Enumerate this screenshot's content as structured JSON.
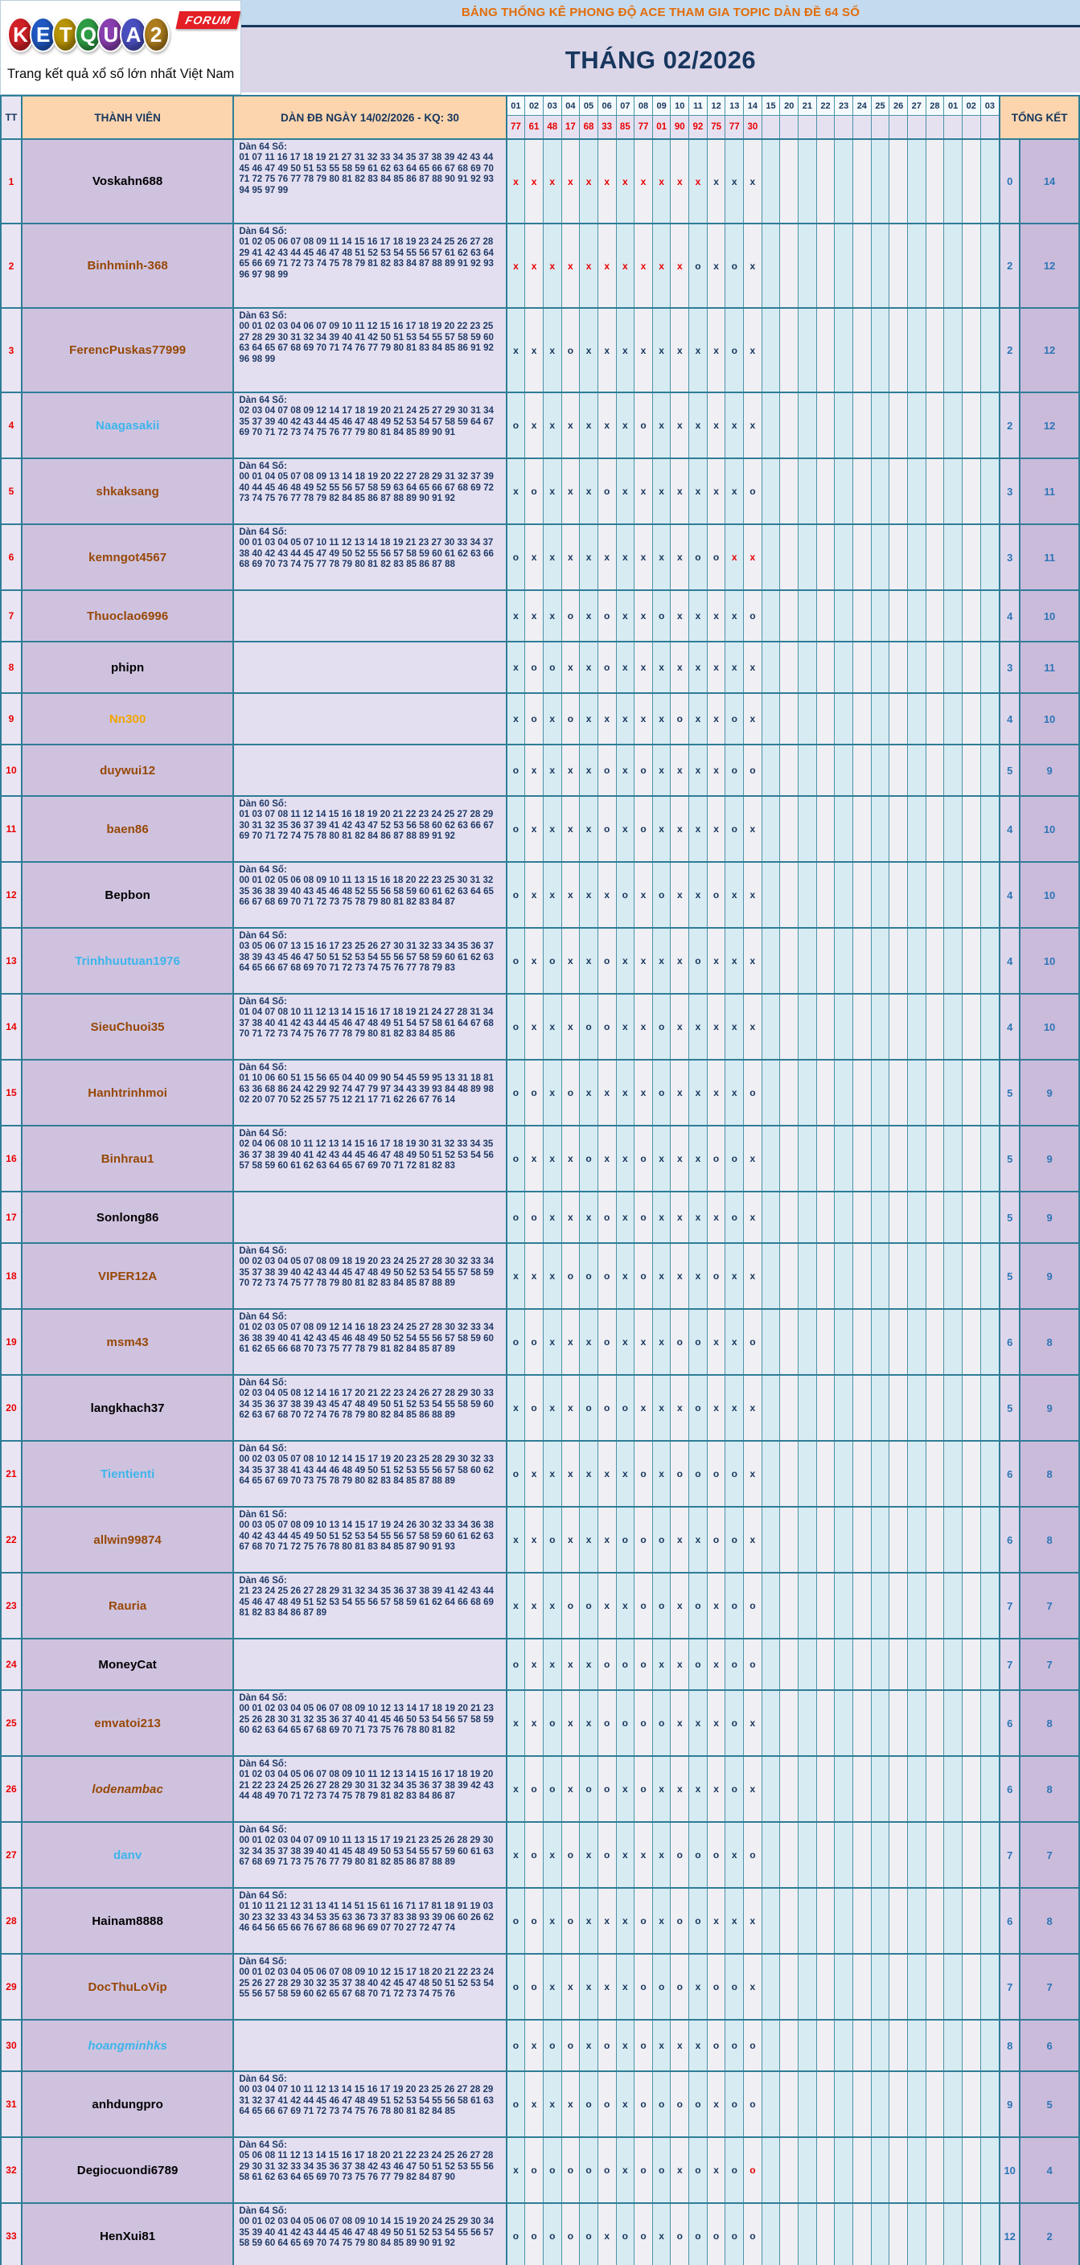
{
  "logo": {
    "letters": [
      {
        "ch": "K",
        "bg": "#d22027"
      },
      {
        "ch": "E",
        "bg": "#2059c2"
      },
      {
        "ch": "T",
        "bg": "#b99405"
      },
      {
        "ch": "Q",
        "bg": "#2e9c44"
      },
      {
        "ch": "U",
        "bg": "#8a3fb0"
      },
      {
        "ch": "A",
        "bg": "#4a4fc0"
      },
      {
        "ch": "2",
        "bg": "#ad7d1e"
      }
    ],
    "forum_label": "FORUM",
    "tagline": "Trang kết quả xổ số lớn nhất Việt Nam"
  },
  "header": {
    "title": "BẢNG THỐNG KÊ PHONG ĐỘ ACE THAM GIA TOPIC DÀN ĐỀ 64 SỐ",
    "month": "THÁNG 02/2026"
  },
  "table": {
    "col_tt": "TT",
    "col_member": "THÀNH VIÊN",
    "col_dan": "DÀN ĐB NGÀY 14/02/2026 - KQ: 30",
    "col_total": "TỔNG KẾT",
    "days": [
      "01",
      "02",
      "03",
      "04",
      "05",
      "06",
      "07",
      "08",
      "09",
      "10",
      "11",
      "12",
      "13",
      "14",
      "15",
      "20",
      "21",
      "22",
      "23",
      "24",
      "25",
      "26",
      "27",
      "28",
      "01",
      "02",
      "03"
    ],
    "results": [
      "77",
      "61",
      "48",
      "17",
      "68",
      "33",
      "85",
      "77",
      "01",
      "90",
      "92",
      "75",
      "77",
      "30"
    ],
    "rows": [
      {
        "tt": "1",
        "name": "Voskahn688",
        "color": "#000000",
        "italic": false,
        "dan_label": "Dàn 64 Số:",
        "dan_numbers": "01 07 11 16 17 18 19 21 27 31 32 33 34 35 37 38 39 42 43 44 45 46 47 49 50 51 53 55 58 59 61 62 63 64 65 66 67 68 69 70 71 72 75 76 77 78 79 80 81 82 83 84 85 86 87 88 90 91 92 93 94 95 97 99",
        "marks": "XXXXXXXXXXXxxx",
        "total_o": "0",
        "total_x": "14"
      },
      {
        "tt": "2",
        "name": "Binhminh-368",
        "color": "#974806",
        "italic": false,
        "dan_label": "Dàn 64 Số:",
        "dan_numbers": "01 02 05 06 07 08 09 11 14 15 16 17 18 19 23 24 25 26 27 28 29 41 42 43 44 45 46 47 48 51 52 53 54 55 56 57 61 62 63 64 65 66 69 71 72 73 74 75 78 79 81 82 83 84 87 88 89 91 92 93 96 97 98 99",
        "marks": "XXXXXXXXXXoxox",
        "total_o": "2",
        "total_x": "12"
      },
      {
        "tt": "3",
        "name": "FerencPuskas77999",
        "color": "#974806",
        "italic": false,
        "dan_label": "Dàn 63 Số:",
        "dan_numbers": "00 01 02 03 04 06 07 09 10 11 12 15 16 17 18 19 20 22 23 25 27 28 29 30 31 32 34 39 40 41 42 50 51 53 54 55 57 58 59 60 63 64 65 67 68 69 70 71 74 76 77 79 80 81 83 84 85 86 91 92 96 98 99",
        "marks": "xxxoxxxxxxxxox",
        "total_o": "2",
        "total_x": "12"
      },
      {
        "tt": "4",
        "name": "Naagasakii",
        "color": "#3db5ea",
        "italic": false,
        "dan_label": "Dàn 64 Số:",
        "dan_numbers": "02 03 04 07 08 09 12 14 17 18 19 20 21 24 25 27 29 30 31 34 35 37 39 40 42 43 44 45 46 47 48 49 52 53 54 57 58 59 64 67 69 70 71 72 73 74 75 76 77 79 80 81 84 85 89 90 91",
        "marks": "oxxxxxxoxxxxxx",
        "total_o": "2",
        "total_x": "12"
      },
      {
        "tt": "5",
        "name": "shkaksang",
        "color": "#974806",
        "italic": false,
        "dan_label": "Dàn 64 Số:",
        "dan_numbers": "00 01 04 05 07 08 09 13 14 18 19 20 22 27 28 29 31 32 37 39 40 44 45 46 48 49 52 55 56 57 58 59 63 64 65 66 67 68 69 72 73 74 75 76 77 78 79 82 84 85 86 87 88 89 90 91 92",
        "marks": "xoxxxoxxxxxxxo",
        "total_o": "3",
        "total_x": "11"
      },
      {
        "tt": "6",
        "name": "kemngot4567",
        "color": "#974806",
        "italic": false,
        "dan_label": "Dàn 64 Số:",
        "dan_numbers": "00 01 03 04 05 07 10 11 12 13 14 18 19 21 23 27 30 33 34 37 38 40 42 43 44 45 47 49 50 52 55 56 57 58 59 60 61 62 63 66 68 69 70 73 74 75 77 78 79 80 81 82 83 85 86 87 88",
        "marks": "oxxxxxxxxxooXX",
        "total_o": "3",
        "total_x": "11"
      },
      {
        "tt": "7",
        "name": "Thuoclao6996",
        "color": "#974806",
        "italic": false,
        "dan_label": "",
        "dan_numbers": "",
        "marks": "xxxoxoxxoxxxxo",
        "total_o": "4",
        "total_x": "10"
      },
      {
        "tt": "8",
        "name": "phipn",
        "color": "#000000",
        "italic": false,
        "dan_label": "",
        "dan_numbers": "",
        "marks": "xooxxoxxxxxxxx",
        "total_o": "3",
        "total_x": "11"
      },
      {
        "tt": "9",
        "name": "Nn300",
        "color": "#f0a500",
        "italic": false,
        "dan_label": "",
        "dan_numbers": "",
        "marks": "xoxoxxxxxoxxox",
        "total_o": "4",
        "total_x": "10"
      },
      {
        "tt": "10",
        "name": "duywui12",
        "color": "#974806",
        "italic": false,
        "dan_label": "",
        "dan_numbers": "",
        "marks": "oxxxxoxoxxxxoo",
        "total_o": "5",
        "total_x": "9"
      },
      {
        "tt": "11",
        "name": "baen86",
        "color": "#974806",
        "italic": false,
        "dan_label": "Dàn 60 Số:",
        "dan_numbers": "01 03 07 08 11 12 14 15 16 18 19 20 21 22 23 24 25 27 28 29 30 31 32 35 36 37 39 41 42 43 47 52 53 56 58 60 62 63 66 67 69 70 71 72 74 75 78 80 81 82 84 86 87 88 89 91 92",
        "marks": "oxxxxoxoxxxxox",
        "total_o": "4",
        "total_x": "10"
      },
      {
        "tt": "12",
        "name": "Bepbon",
        "color": "#000000",
        "italic": false,
        "dan_label": "Dàn 64 Số:",
        "dan_numbers": "00 01 02 05 06 08 09 10 11 13 15 16 18 20 22 23 25 30 31 32 35 36 38 39 40 43 45 46 48 52 55 56 58 59 60 61 62 63 64 65 66 67 68 69 70 71 72 73 75 78 79 80 81 82 83 84 87",
        "marks": "oxxxxxoxoxxoxx",
        "total_o": "4",
        "total_x": "10"
      },
      {
        "tt": "13",
        "name": "Trinhhuutuan1976",
        "color": "#3db5ea",
        "italic": false,
        "dan_label": "Dàn 64 Số:",
        "dan_numbers": "03 05 06 07 13 15 16 17 23 25 26 27 30 31 32 33 34 35 36 37 38 39 43 45 46 47 50 51 52 53 54 55 56 57 58 59 60 61 62 63 64 65 66 67 68 69 70 71 72 73 74 75 76 77 78 79 83",
        "marks": "oxoxxoxxxxoxxx",
        "total_o": "4",
        "total_x": "10"
      },
      {
        "tt": "14",
        "name": "SieuChuoi35",
        "color": "#974806",
        "italic": false,
        "dan_label": "Dàn 64 Số:",
        "dan_numbers": "01 04 07 08 10 11 12 13 14 15 16 17 18 19 21 24 27 28 31 34 37 38 40 41 42 43 44 45 46 47 48 49 51 54 57 58 61 64 67 68 70 71 72 73 74 75 76 77 78 79 80 81 82 83 84 85 86",
        "marks": "oxxxooxxoxxxxx",
        "total_o": "4",
        "total_x": "10"
      },
      {
        "tt": "15",
        "name": "Hanhtrinhmoi",
        "color": "#974806",
        "italic": false,
        "dan_label": "Dàn 64 Số:",
        "dan_numbers": "01 10 06 60 51 15 56 65 04 40 09 90 54 45 59 95 13 31 18 81 63 36 68 86 24 42 29 92 74 47 79 97 34 43 39 93 84 48 89 98 02 20 07 70 52 25 57 75 12 21 17 71 62 26 67 76 14",
        "marks": "ooxoxxxxoxxxxo",
        "total_o": "5",
        "total_x": "9"
      },
      {
        "tt": "16",
        "name": "Binhrau1",
        "color": "#974806",
        "italic": false,
        "dan_label": "Dàn 64 Số:",
        "dan_numbers": "02 04 06 08 10 11 12 13 14 15 16 17 18 19 30 31 32 33 34 35 36 37 38 39 40 41 42 43 44 45 46 47 48 49 50 51 52 53 54 56 57 58 59 60 61 62 63 64 65 67 69 70 71 72 81 82 83",
        "marks": "oxxxoxxoxxxoox",
        "total_o": "5",
        "total_x": "9"
      },
      {
        "tt": "17",
        "name": "Sonlong86",
        "color": "#000000",
        "italic": false,
        "dan_label": "",
        "dan_numbers": "",
        "marks": "ooxxxoxoxxxxox",
        "total_o": "5",
        "total_x": "9"
      },
      {
        "tt": "18",
        "name": "VIPER12A",
        "color": "#974806",
        "italic": false,
        "dan_label": "Dàn 64 Số:",
        "dan_numbers": "00 02 03 04 05 07 08 09 18 19 20 23 24 25 27 28 30 32 33 34 35 37 38 39 40 42 43 44 45 47 48 49 50 52 53 54 55 57 58 59 70 72 73 74 75 77 78 79 80 81 82 83 84 85 87 88 89",
        "marks": "xxxoooxoxxxoxx",
        "total_o": "5",
        "total_x": "9"
      },
      {
        "tt": "19",
        "name": "msm43",
        "color": "#974806",
        "italic": false,
        "dan_label": "Dàn 64 Số:",
        "dan_numbers": "01 02 03 05 07 08 09 12 14 16 18 23 24 25 27 28 30 32 33 34 36 38 39 40 41 42 43 45 46 48 49 50 52 54 55 56 57 58 59 60 61 62 65 66 68 70 73 75 77 78 79 81 82 84 85 87 89",
        "marks": "ooxxxoxxxooxxo",
        "total_o": "6",
        "total_x": "8"
      },
      {
        "tt": "20",
        "name": "langkhach37",
        "color": "#000000",
        "italic": false,
        "dan_label": "Dàn 64 Số:",
        "dan_numbers": "02 03 04 05 08 12 14 16 17 20 21 22 23 24 26 27 28 29 30 33 34 35 36 37 38 39 43 45 47 48 49 50 51 52 53 54 55 58 59 60 62 63 67 68 70 72 74 76 78 79 80 82 84 85 86 88 89",
        "marks": "xoxxoooxxxoxxx",
        "total_o": "5",
        "total_x": "9"
      },
      {
        "tt": "21",
        "name": "Tientienti",
        "color": "#3db5ea",
        "italic": false,
        "dan_label": "Dàn 64 Số:",
        "dan_numbers": "00 02 03 05 07 08 10 12 14 15 17 19 20 23 25 28 29 30 32 33 34 35 37 38 41 43 44 46 48 49 50 51 52 53 55 56 57 58 60 62 64 65 67 69 70 73 75 78 79 80 82 83 84 85 87 88 89",
        "marks": "oxxxxxxoxoooox",
        "total_o": "6",
        "total_x": "8"
      },
      {
        "tt": "22",
        "name": "allwin99874",
        "color": "#974806",
        "italic": false,
        "dan_label": "Dàn 61 Số:",
        "dan_numbers": "00 03 05 07 08 09 10 13 14 15 17 19 24 26 30 32 33 34 36 38 40 42 43 44 45 49 50 51 52 53 54 55 56 57 58 59 60 61 62 63 67 68 70 71 72 75 76 78 80 81 83 84 85 87 90 91 93",
        "marks": "xxoxxxoooxxoox",
        "total_o": "6",
        "total_x": "8"
      },
      {
        "tt": "23",
        "name": "Rauria",
        "color": "#974806",
        "italic": false,
        "dan_label": "Dàn 46 Số:",
        "dan_numbers": "21 23 24 25 26 27 28 29 31 32 34 35 36 37 38 39 41 42 43 44 45 46 47 48 49 51 52 53 54 55 56 57 58 59 61 62 64 66 68 69 81 82 83 84 86 87 89",
        "marks": "xxxooxxooxoxoo",
        "total_o": "7",
        "total_x": "7"
      },
      {
        "tt": "24",
        "name": "MoneyCat",
        "color": "#000000",
        "italic": false,
        "dan_label": "",
        "dan_numbers": "",
        "marks": "oxxxxoooxxoxoo",
        "total_o": "7",
        "total_x": "7"
      },
      {
        "tt": "25",
        "name": "emvatoi213",
        "color": "#974806",
        "italic": false,
        "dan_label": "Dàn 64 Số:",
        "dan_numbers": "00 01 02 03 04 05 06 07 08 09 10 12 13 14 17 18 19 20 21 23 25 26 28 30 31 32 35 36 37 40 41 45 46 50 53 54 56 57 58 59 60 62 63 64 65 67 68 69 70 71 73 75 76 78 80 81 82",
        "marks": "xxoxxooooxxxox",
        "total_o": "6",
        "total_x": "8"
      },
      {
        "tt": "26",
        "name": "lodenambac",
        "color": "#974806",
        "italic": true,
        "dan_label": "Dàn 64 Số:",
        "dan_numbers": "01 02 03 04 05 06 07 08 09 10 11 12 13 14 15 16 17 18 19 20 21 22 23 24 25 26 27 28 29 30 31 32 34 35 36 37 38 39 42 43 44 48 49 70 71 72 73 74 75 78 79 81 82 83 84 86 87",
        "marks": "xooxooxoxxxxox",
        "total_o": "6",
        "total_x": "8"
      },
      {
        "tt": "27",
        "name": "danv",
        "color": "#3db5ea",
        "italic": false,
        "dan_label": "Dàn 64 Số:",
        "dan_numbers": "00 01 02 03 04 07 09 10 11 13 15 17 19 21 23 25 26 28 29 30 32 34 35 37 38 39 40 41 45 48 49 50 53 54 55 57 59 60 61 63 67 68 69 71 73 75 76 77 79 80 81 82 85 86 87 88 89",
        "marks": "xoxoxoxxxoooxo",
        "total_o": "7",
        "total_x": "7"
      },
      {
        "tt": "28",
        "name": "Hainam8888",
        "color": "#000000",
        "italic": false,
        "dan_label": "Dàn 64 Số:",
        "dan_numbers": "01 10 11 21 12 31 13 41 14 51 15 61 16 71 17 81 18 91 19 03 30 23 32 33 43 34 53 35 63 36 73 37 83 38 93 39 06 60 26 62 46 64 56 65 66 76 67 86 68 96 69 07 70 27 72 47 74",
        "marks": "ooxoxxxoxooxxx",
        "total_o": "6",
        "total_x": "8"
      },
      {
        "tt": "29",
        "name": "DocThuLoVip",
        "color": "#974806",
        "italic": false,
        "dan_label": "Dàn 64 Số:",
        "dan_numbers": "00 01 02 03 04 05 06 07 08 09 10 12 15 17 18 20 21 22 23 24 25 26 27 28 29 30 32 35 37 38 40 42 45 47 48 50 51 52 53 54 55 56 57 58 59 60 62 65 67 68 70 71 72 73 74 75 76",
        "marks": "ooxxxxxoooxoox",
        "total_o": "7",
        "total_x": "7"
      },
      {
        "tt": "30",
        "name": "hoangminhks",
        "color": "#3db5ea",
        "italic": true,
        "dan_label": "",
        "dan_numbers": "",
        "marks": "oxooxoxoxxxooo",
        "total_o": "8",
        "total_x": "6"
      },
      {
        "tt": "31",
        "name": "anhdungpro",
        "color": "#000000",
        "italic": false,
        "dan_label": "Dàn 64 Số:",
        "dan_numbers": "00 03 04 07 10 11 12 13 14 15 16 17 19 20 23 25 26 27 28 29 31 32 37 41 42 44 45 46 47 48 49 51 52 53 54 55 56 58 61 63 64 65 66 67 69 71 72 73 74 75 76 78 80 81 82 84 85",
        "marks": "oxxxooxooooxoo",
        "total_o": "9",
        "total_x": "5"
      },
      {
        "tt": "32",
        "name": "Degiocuondi6789",
        "color": "#000000",
        "italic": false,
        "dan_label": "Dàn 64 Số:",
        "dan_numbers": "05 06 08 11 12 13 14 15 16 17 18 20 21 22 23 24 25 26 27 28 29 30 31 32 33 34 35 36 37 38 42 43 46 47 50 51 52 53 55 56 58 61 62 63 64 65 69 70 73 75 76 77 79 82 84 87 90",
        "marks": "xoooooxooxoxoO",
        "total_o": "10",
        "total_x": "4"
      },
      {
        "tt": "33",
        "name": "HenXui81",
        "color": "#000000",
        "italic": false,
        "dan_label": "Dàn 64 Số:",
        "dan_numbers": "00 01 02 03 04 05 06 07 08 09 10 14 15 19 20 24 25 29 30 34 35 39 40 41 42 43 44 45 46 47 48 49 50 51 52 53 54 55 56 57 58 59 60 64 65 69 70 74 75 79 80 84 85 89 90 91 92",
        "marks": "oooooxooxooooo",
        "total_o": "12",
        "total_x": "2"
      }
    ]
  }
}
